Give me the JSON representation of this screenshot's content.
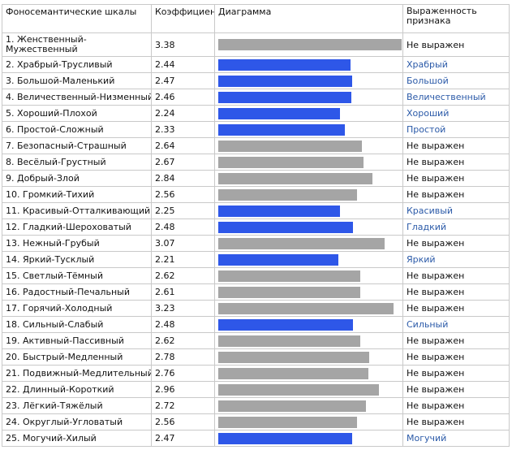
{
  "headers": {
    "scale": "Фоносемантические шкалы",
    "coef": "Коэффициент",
    "diagram": "Диаграмма",
    "expr": "Выраженность признака"
  },
  "colors": {
    "gray": "#a5a5a5",
    "blue": "#2e57e8",
    "link_text": "#2b5aa8"
  },
  "bar_scale": {
    "min": 0,
    "max": 3.38
  },
  "rows": [
    {
      "name": "1. Женственный-Мужественный",
      "coef": "3.38",
      "value": 3.38,
      "kind": "gray",
      "expr": "Не выражен"
    },
    {
      "name": "2. Храбрый-Трусливый",
      "coef": "2.44",
      "value": 2.44,
      "kind": "blue",
      "expr": "Храбрый"
    },
    {
      "name": "3. Большой-Маленький",
      "coef": "2.47",
      "value": 2.47,
      "kind": "blue",
      "expr": "Большой"
    },
    {
      "name": "4. Величественный-Низменный",
      "coef": "2.46",
      "value": 2.46,
      "kind": "blue",
      "expr": "Величественный"
    },
    {
      "name": "5. Хороший-Плохой",
      "coef": "2.24",
      "value": 2.24,
      "kind": "blue",
      "expr": "Хороший"
    },
    {
      "name": "6. Простой-Сложный",
      "coef": "2.33",
      "value": 2.33,
      "kind": "blue",
      "expr": "Простой"
    },
    {
      "name": "7. Безопасный-Страшный",
      "coef": "2.64",
      "value": 2.64,
      "kind": "gray",
      "expr": "Не выражен"
    },
    {
      "name": "8. Весёлый-Грустный",
      "coef": "2.67",
      "value": 2.67,
      "kind": "gray",
      "expr": "Не выражен"
    },
    {
      "name": "9. Добрый-Злой",
      "coef": "2.84",
      "value": 2.84,
      "kind": "gray",
      "expr": "Не выражен"
    },
    {
      "name": "10. Громкий-Тихий",
      "coef": "2.56",
      "value": 2.56,
      "kind": "gray",
      "expr": "Не выражен"
    },
    {
      "name": "11. Красивый-Отталкивающий",
      "coef": "2.25",
      "value": 2.25,
      "kind": "blue",
      "expr": "Красивый"
    },
    {
      "name": "12. Гладкий-Шероховатый",
      "coef": "2.48",
      "value": 2.48,
      "kind": "blue",
      "expr": "Гладкий"
    },
    {
      "name": "13. Нежный-Грубый",
      "coef": "3.07",
      "value": 3.07,
      "kind": "gray",
      "expr": "Не выражен"
    },
    {
      "name": "14. Яркий-Тусклый",
      "coef": "2.21",
      "value": 2.21,
      "kind": "blue",
      "expr": "Яркий"
    },
    {
      "name": "15. Светлый-Тёмный",
      "coef": "2.62",
      "value": 2.62,
      "kind": "gray",
      "expr": "Не выражен"
    },
    {
      "name": "16. Радостный-Печальный",
      "coef": "2.61",
      "value": 2.61,
      "kind": "gray",
      "expr": "Не выражен"
    },
    {
      "name": "17. Горячий-Холодный",
      "coef": "3.23",
      "value": 3.23,
      "kind": "gray",
      "expr": "Не выражен"
    },
    {
      "name": "18. Сильный-Слабый",
      "coef": "2.48",
      "value": 2.48,
      "kind": "blue",
      "expr": "Сильный"
    },
    {
      "name": "19. Активный-Пассивный",
      "coef": "2.62",
      "value": 2.62,
      "kind": "gray",
      "expr": "Не выражен"
    },
    {
      "name": "20. Быстрый-Медленный",
      "coef": "2.78",
      "value": 2.78,
      "kind": "gray",
      "expr": "Не выражен"
    },
    {
      "name": "21. Подвижный-Медлительный",
      "coef": "2.76",
      "value": 2.76,
      "kind": "gray",
      "expr": "Не выражен"
    },
    {
      "name": "22. Длинный-Короткий",
      "coef": "2.96",
      "value": 2.96,
      "kind": "gray",
      "expr": "Не выражен"
    },
    {
      "name": "23. Лёгкий-Тяжёлый",
      "coef": "2.72",
      "value": 2.72,
      "kind": "gray",
      "expr": "Не выражен"
    },
    {
      "name": "24. Округлый-Угловатый",
      "coef": "2.56",
      "value": 2.56,
      "kind": "gray",
      "expr": "Не выражен"
    },
    {
      "name": "25. Могучий-Хилый",
      "coef": "2.47",
      "value": 2.47,
      "kind": "blue",
      "expr": "Могучий"
    }
  ]
}
